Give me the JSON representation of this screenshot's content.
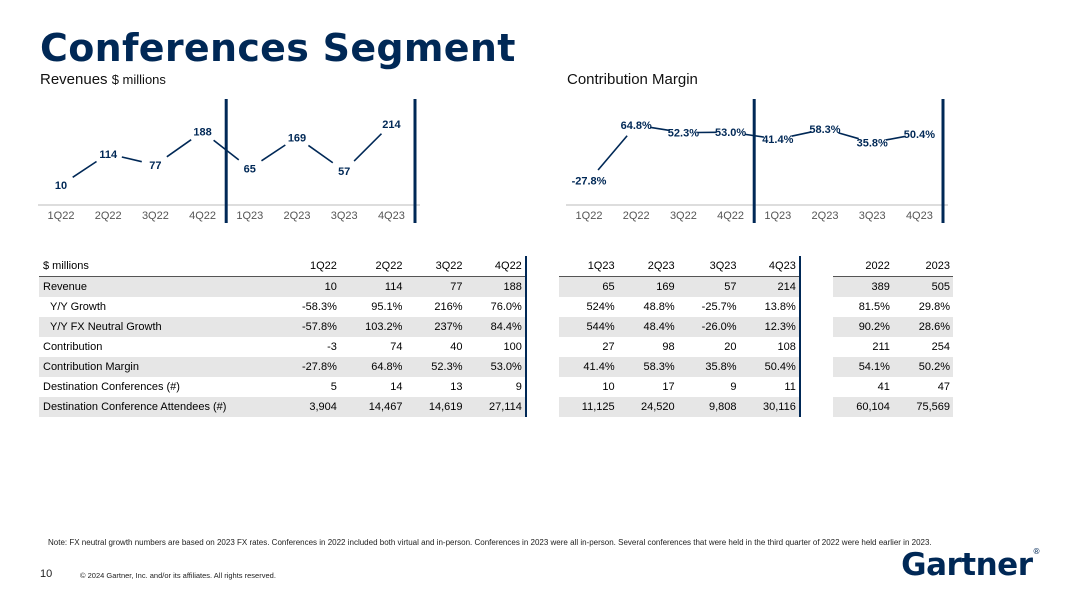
{
  "page": {
    "title": "Conferences Segment",
    "page_number": "10",
    "copyright": "© 2024 Gartner, Inc. and/or its affiliates. All rights reserved.",
    "logo": "Gartner",
    "logo_mark": "®",
    "note": "Note: FX neutral growth numbers are based on 2023 FX rates. Conferences in 2022 included both virtual and in-person. Conferences in 2023 were all in-person. Several conferences that were held in the third quarter of 2022 were held earlier in 2023."
  },
  "colors": {
    "brand": "#002856",
    "shade": "#e6e6e6",
    "line": "#002856"
  },
  "chart_data": [
    {
      "type": "line",
      "title": "Revenues",
      "unit": "$ millions",
      "categories": [
        "1Q22",
        "2Q22",
        "3Q22",
        "4Q22",
        "1Q23",
        "2Q23",
        "3Q23",
        "4Q23"
      ],
      "values": [
        10,
        114,
        77,
        188,
        65,
        169,
        57,
        214
      ],
      "labels": [
        "10",
        "114",
        "77",
        "188",
        "65",
        "169",
        "57",
        "214"
      ],
      "ylim": [
        0,
        230
      ]
    },
    {
      "type": "line",
      "title": "Contribution Margin",
      "categories": [
        "1Q22",
        "2Q22",
        "3Q22",
        "4Q22",
        "1Q23",
        "2Q23",
        "3Q23",
        "4Q23"
      ],
      "values": [
        -27.8,
        64.8,
        52.3,
        53.0,
        41.4,
        58.3,
        35.8,
        50.4
      ],
      "labels": [
        "-27.8%",
        "64.8%",
        "52.3%",
        "53.0%",
        "41.4%",
        "58.3%",
        "35.8%",
        "50.4%"
      ],
      "ylim": [
        -40,
        75
      ]
    }
  ],
  "table": {
    "columns": [
      "$ millions",
      "1Q22",
      "2Q22",
      "3Q22",
      "4Q22",
      "1Q23",
      "2Q23",
      "3Q23",
      "4Q23",
      "2022",
      "2023"
    ],
    "rows": [
      {
        "label": "Revenue",
        "cells": [
          "10",
          "114",
          "77",
          "188",
          "65",
          "169",
          "57",
          "214",
          "389",
          "505"
        ]
      },
      {
        "label": "Y/Y Growth",
        "cells": [
          "-58.3%",
          "95.1%",
          "216%",
          "76.0%",
          "524%",
          "48.8%",
          "-25.7%",
          "13.8%",
          "81.5%",
          "29.8%"
        ]
      },
      {
        "label": "Y/Y FX Neutral Growth",
        "cells": [
          "-57.8%",
          "103.2%",
          "237%",
          "84.4%",
          "544%",
          "48.4%",
          "-26.0%",
          "12.3%",
          "90.2%",
          "28.6%"
        ]
      },
      {
        "label": "Contribution",
        "cells": [
          "-3",
          "74",
          "40",
          "100",
          "27",
          "98",
          "20",
          "108",
          "211",
          "254"
        ]
      },
      {
        "label": "Contribution Margin",
        "cells": [
          "-27.8%",
          "64.8%",
          "52.3%",
          "53.0%",
          "41.4%",
          "58.3%",
          "35.8%",
          "50.4%",
          "54.1%",
          "50.2%"
        ]
      },
      {
        "label": "Destination Conferences (#)",
        "cells": [
          "5",
          "14",
          "13",
          "9",
          "10",
          "17",
          "9",
          "11",
          "41",
          "47"
        ]
      },
      {
        "label": "Destination Conference Attendees (#)",
        "cells": [
          "3,904",
          "14,467",
          "14,619",
          "27,114",
          "11,125",
          "24,520",
          "9,808",
          "30,116",
          "60,104",
          "75,569"
        ]
      }
    ]
  }
}
